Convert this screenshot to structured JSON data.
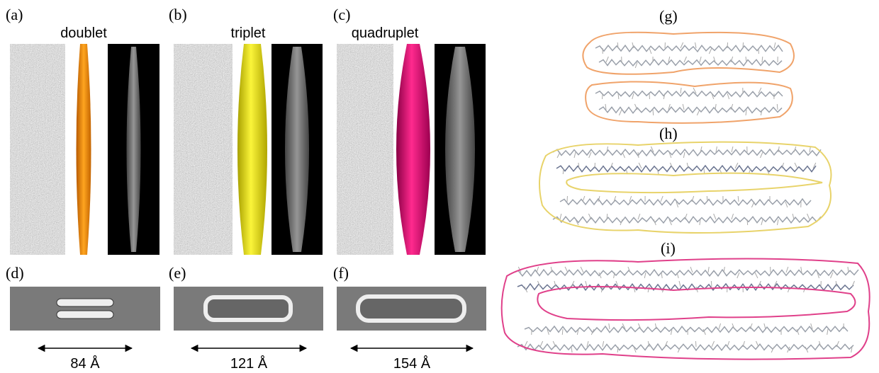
{
  "panels": {
    "a": {
      "label": "(a)",
      "title": "doublet"
    },
    "b": {
      "label": "(b)",
      "title": "triplet"
    },
    "c": {
      "label": "(c)",
      "title": "quadruplet"
    },
    "d": {
      "label": "(d)",
      "width": "84 Å"
    },
    "e": {
      "label": "(e)",
      "width": "121 Å"
    },
    "f": {
      "label": "(f)",
      "width": "154 Å"
    },
    "g": {
      "label": "(g)"
    },
    "h": {
      "label": "(h)"
    },
    "i": {
      "label": "(i)"
    }
  }
}
